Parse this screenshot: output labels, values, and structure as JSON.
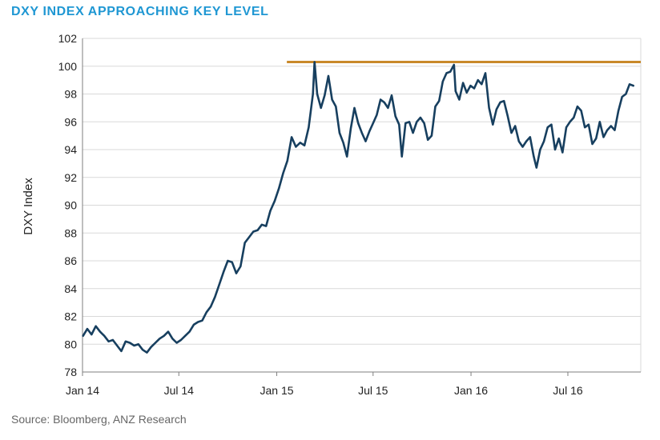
{
  "colors": {
    "title": "#1f97d3",
    "series": "#173f5f",
    "key_level": "#c9892a",
    "grid": "#d9d9d9",
    "axis": "#7f7f7f",
    "text": "#222222"
  },
  "chart_data": {
    "type": "line",
    "title": "DXY INDEX APPROACHING KEY LEVEL",
    "source": "Source: Bloomberg, ANZ Research",
    "ylabel": "DXY Index",
    "xlabel": "",
    "ylim": [
      78,
      102
    ],
    "yticks": [
      78,
      80,
      82,
      84,
      86,
      88,
      90,
      92,
      94,
      96,
      98,
      100,
      102
    ],
    "xlim": [
      "2014-01-01",
      "2016-11-15"
    ],
    "xticks": [
      {
        "date": "2014-01-01",
        "label": "Jan 14"
      },
      {
        "date": "2014-07-01",
        "label": "Jul 14"
      },
      {
        "date": "2015-01-01",
        "label": "Jan 15"
      },
      {
        "date": "2015-07-01",
        "label": "Jul 15"
      },
      {
        "date": "2016-01-01",
        "label": "Jan 16"
      },
      {
        "date": "2016-07-01",
        "label": "Jul 16"
      }
    ],
    "grid": "horizontal",
    "reference_line": {
      "y": 100.3,
      "x_start": "2015-01-20",
      "x_end": "2016-11-15"
    },
    "series": [
      {
        "points": [
          [
            "2014-01-02",
            80.6
          ],
          [
            "2014-01-10",
            81.1
          ],
          [
            "2014-01-18",
            80.7
          ],
          [
            "2014-01-26",
            81.3
          ],
          [
            "2014-02-03",
            80.9
          ],
          [
            "2014-02-11",
            80.6
          ],
          [
            "2014-02-19",
            80.2
          ],
          [
            "2014-02-27",
            80.3
          ],
          [
            "2014-03-07",
            79.9
          ],
          [
            "2014-03-15",
            79.5
          ],
          [
            "2014-03-23",
            80.2
          ],
          [
            "2014-03-31",
            80.1
          ],
          [
            "2014-04-08",
            79.9
          ],
          [
            "2014-04-16",
            80.0
          ],
          [
            "2014-04-24",
            79.6
          ],
          [
            "2014-05-02",
            79.4
          ],
          [
            "2014-05-10",
            79.8
          ],
          [
            "2014-05-18",
            80.1
          ],
          [
            "2014-05-26",
            80.4
          ],
          [
            "2014-06-03",
            80.6
          ],
          [
            "2014-06-11",
            80.9
          ],
          [
            "2014-06-19",
            80.4
          ],
          [
            "2014-06-27",
            80.1
          ],
          [
            "2014-07-05",
            80.3
          ],
          [
            "2014-07-13",
            80.6
          ],
          [
            "2014-07-21",
            80.9
          ],
          [
            "2014-07-29",
            81.4
          ],
          [
            "2014-08-06",
            81.6
          ],
          [
            "2014-08-14",
            81.7
          ],
          [
            "2014-08-22",
            82.3
          ],
          [
            "2014-08-30",
            82.7
          ],
          [
            "2014-09-07",
            83.4
          ],
          [
            "2014-09-15",
            84.3
          ],
          [
            "2014-09-23",
            85.2
          ],
          [
            "2014-10-01",
            86.0
          ],
          [
            "2014-10-09",
            85.9
          ],
          [
            "2014-10-17",
            85.1
          ],
          [
            "2014-10-25",
            85.6
          ],
          [
            "2014-11-02",
            87.3
          ],
          [
            "2014-11-10",
            87.7
          ],
          [
            "2014-11-18",
            88.1
          ],
          [
            "2014-11-26",
            88.2
          ],
          [
            "2014-12-04",
            88.6
          ],
          [
            "2014-12-12",
            88.5
          ],
          [
            "2014-12-20",
            89.6
          ],
          [
            "2014-12-28",
            90.3
          ],
          [
            "2015-01-05",
            91.2
          ],
          [
            "2015-01-13",
            92.3
          ],
          [
            "2015-01-21",
            93.2
          ],
          [
            "2015-01-29",
            94.9
          ],
          [
            "2015-02-06",
            94.2
          ],
          [
            "2015-02-14",
            94.5
          ],
          [
            "2015-02-22",
            94.3
          ],
          [
            "2015-03-02",
            95.6
          ],
          [
            "2015-03-10",
            98.0
          ],
          [
            "2015-03-13",
            100.3
          ],
          [
            "2015-03-18",
            98.0
          ],
          [
            "2015-03-25",
            97.0
          ],
          [
            "2015-04-01",
            97.9
          ],
          [
            "2015-04-08",
            99.3
          ],
          [
            "2015-04-15",
            97.6
          ],
          [
            "2015-04-22",
            97.1
          ],
          [
            "2015-04-29",
            95.2
          ],
          [
            "2015-05-06",
            94.5
          ],
          [
            "2015-05-13",
            93.5
          ],
          [
            "2015-05-20",
            95.5
          ],
          [
            "2015-05-27",
            97.0
          ],
          [
            "2015-06-03",
            95.9
          ],
          [
            "2015-06-10",
            95.2
          ],
          [
            "2015-06-17",
            94.6
          ],
          [
            "2015-06-24",
            95.3
          ],
          [
            "2015-07-01",
            95.9
          ],
          [
            "2015-07-08",
            96.5
          ],
          [
            "2015-07-15",
            97.6
          ],
          [
            "2015-07-22",
            97.4
          ],
          [
            "2015-07-29",
            97.0
          ],
          [
            "2015-08-05",
            97.9
          ],
          [
            "2015-08-12",
            96.4
          ],
          [
            "2015-08-19",
            95.8
          ],
          [
            "2015-08-24",
            93.5
          ],
          [
            "2015-08-31",
            95.9
          ],
          [
            "2015-09-07",
            96.0
          ],
          [
            "2015-09-14",
            95.2
          ],
          [
            "2015-09-21",
            96.0
          ],
          [
            "2015-09-28",
            96.3
          ],
          [
            "2015-10-05",
            95.9
          ],
          [
            "2015-10-12",
            94.7
          ],
          [
            "2015-10-19",
            95.0
          ],
          [
            "2015-10-26",
            97.1
          ],
          [
            "2015-11-02",
            97.5
          ],
          [
            "2015-11-09",
            98.9
          ],
          [
            "2015-11-16",
            99.5
          ],
          [
            "2015-11-23",
            99.6
          ],
          [
            "2015-11-30",
            100.1
          ],
          [
            "2015-12-03",
            98.2
          ],
          [
            "2015-12-10",
            97.6
          ],
          [
            "2015-12-17",
            98.8
          ],
          [
            "2015-12-24",
            98.1
          ],
          [
            "2015-12-31",
            98.6
          ],
          [
            "2016-01-07",
            98.4
          ],
          [
            "2016-01-14",
            99.0
          ],
          [
            "2016-01-21",
            98.7
          ],
          [
            "2016-01-28",
            99.5
          ],
          [
            "2016-02-04",
            97.0
          ],
          [
            "2016-02-11",
            95.8
          ],
          [
            "2016-02-18",
            96.9
          ],
          [
            "2016-02-25",
            97.4
          ],
          [
            "2016-03-03",
            97.5
          ],
          [
            "2016-03-10",
            96.4
          ],
          [
            "2016-03-17",
            95.2
          ],
          [
            "2016-03-24",
            95.7
          ],
          [
            "2016-03-31",
            94.6
          ],
          [
            "2016-04-07",
            94.2
          ],
          [
            "2016-04-14",
            94.6
          ],
          [
            "2016-04-21",
            94.9
          ],
          [
            "2016-04-28",
            93.5
          ],
          [
            "2016-05-03",
            92.7
          ],
          [
            "2016-05-10",
            94.0
          ],
          [
            "2016-05-17",
            94.6
          ],
          [
            "2016-05-24",
            95.6
          ],
          [
            "2016-05-31",
            95.8
          ],
          [
            "2016-06-07",
            94.0
          ],
          [
            "2016-06-14",
            94.8
          ],
          [
            "2016-06-21",
            93.8
          ],
          [
            "2016-06-28",
            95.6
          ],
          [
            "2016-07-05",
            96.0
          ],
          [
            "2016-07-12",
            96.3
          ],
          [
            "2016-07-19",
            97.1
          ],
          [
            "2016-07-26",
            96.8
          ],
          [
            "2016-08-02",
            95.6
          ],
          [
            "2016-08-09",
            95.8
          ],
          [
            "2016-08-16",
            94.4
          ],
          [
            "2016-08-23",
            94.8
          ],
          [
            "2016-08-30",
            96.0
          ],
          [
            "2016-09-06",
            94.9
          ],
          [
            "2016-09-13",
            95.4
          ],
          [
            "2016-09-20",
            95.7
          ],
          [
            "2016-09-27",
            95.4
          ],
          [
            "2016-10-04",
            96.8
          ],
          [
            "2016-10-11",
            97.8
          ],
          [
            "2016-10-18",
            98.0
          ],
          [
            "2016-10-25",
            98.7
          ],
          [
            "2016-11-01",
            98.6
          ]
        ]
      }
    ]
  }
}
